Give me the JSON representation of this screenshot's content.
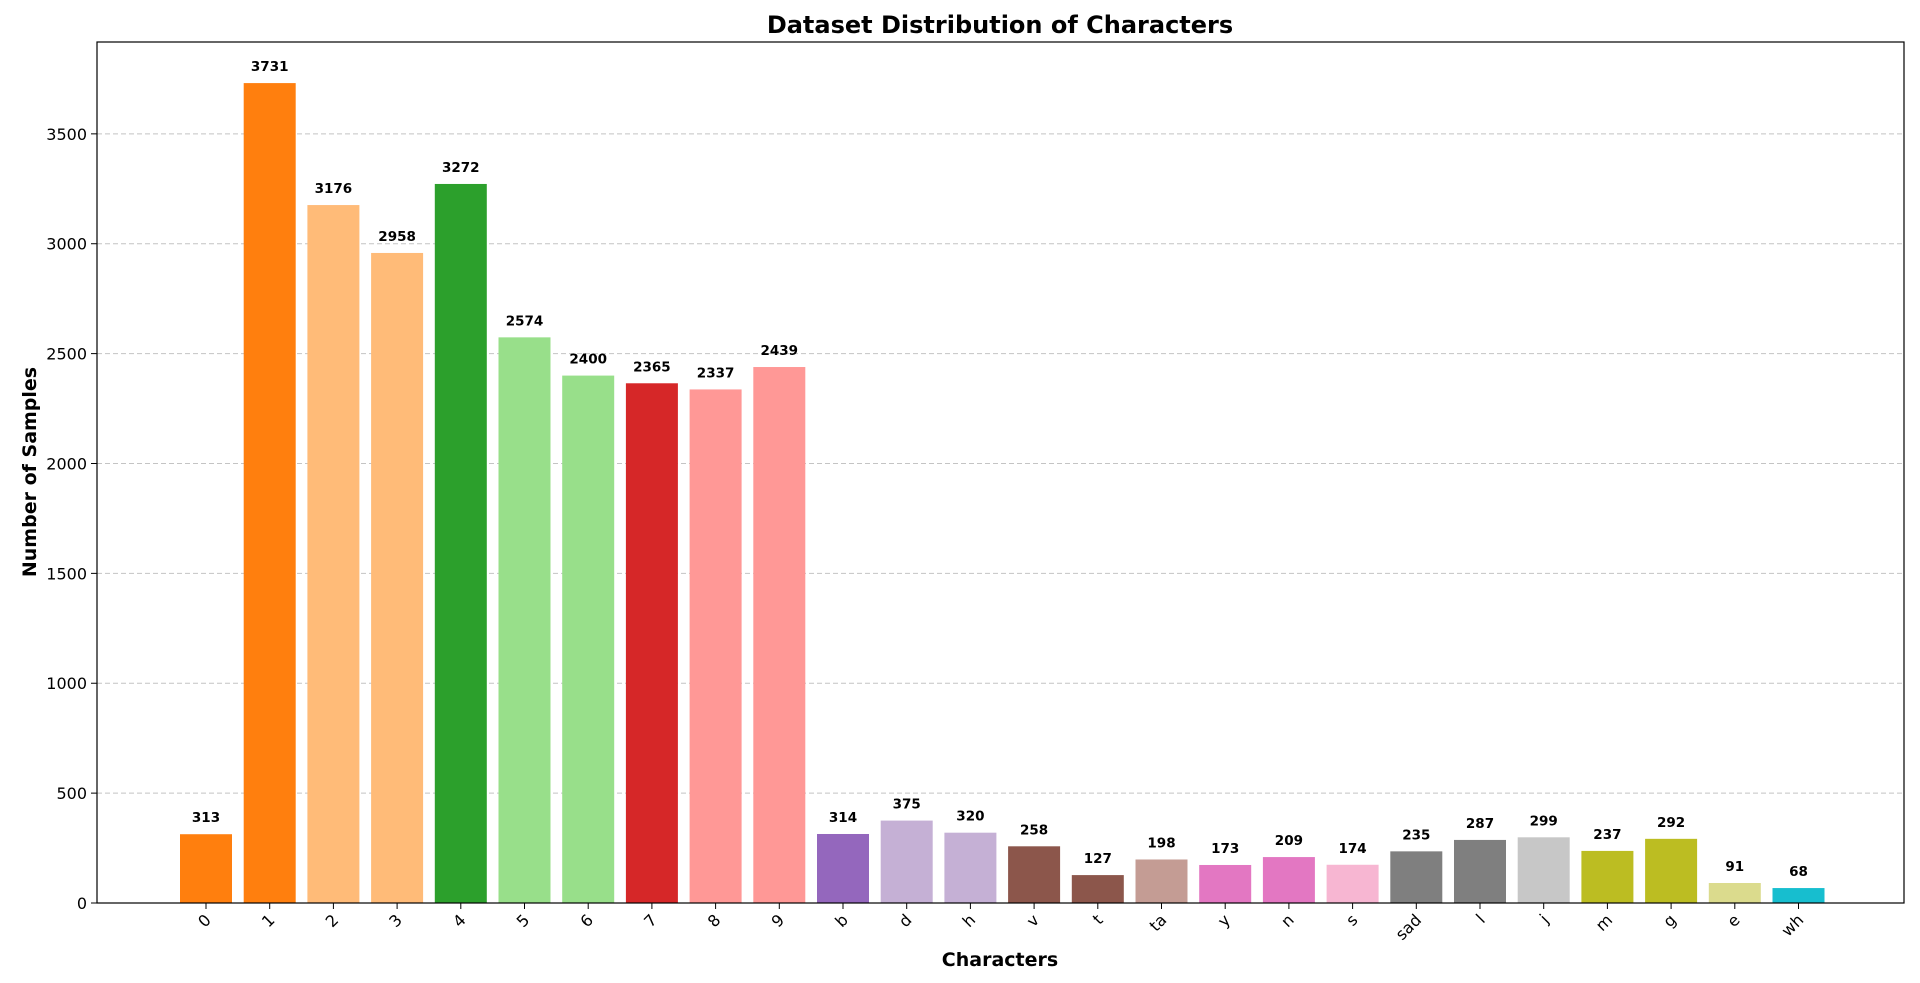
{
  "chart_data": {
    "type": "bar",
    "title": "Dataset Distribution of Characters",
    "xlabel": "Characters",
    "ylabel": "Number of Samples",
    "categories": [
      "0",
      "1",
      "2",
      "3",
      "4",
      "5",
      "6",
      "7",
      "8",
      "9",
      "b",
      "d",
      "h",
      "v",
      "t",
      "ta",
      "y",
      "n",
      "s",
      "sad",
      "l",
      "j",
      "m",
      "g",
      "e",
      "wh"
    ],
    "values": [
      313,
      3731,
      3176,
      2958,
      3272,
      2574,
      2400,
      2365,
      2337,
      2439,
      314,
      375,
      320,
      258,
      127,
      198,
      173,
      209,
      174,
      235,
      287,
      299,
      237,
      292,
      91,
      68
    ],
    "colors": [
      "#ff7f0e",
      "#ff7f0e",
      "#ffbb78",
      "#ffbb78",
      "#2ca02c",
      "#98df8a",
      "#98df8a",
      "#d62728",
      "#ff9896",
      "#ff9896",
      "#9467bd",
      "#c5b0d5",
      "#c5b0d5",
      "#8c564b",
      "#8c564b",
      "#c49c94",
      "#e377c2",
      "#e377c2",
      "#f7b6d2",
      "#7f7f7f",
      "#7f7f7f",
      "#c7c7c7",
      "#bcbd22",
      "#bcbd22",
      "#dbdb8d",
      "#17becf"
    ],
    "ylim": [
      0,
      3918
    ],
    "yticks": [
      0,
      500,
      1000,
      1500,
      2000,
      2500,
      3000,
      3500
    ],
    "grid": "y-dashed",
    "xtick_rotation": -45
  }
}
